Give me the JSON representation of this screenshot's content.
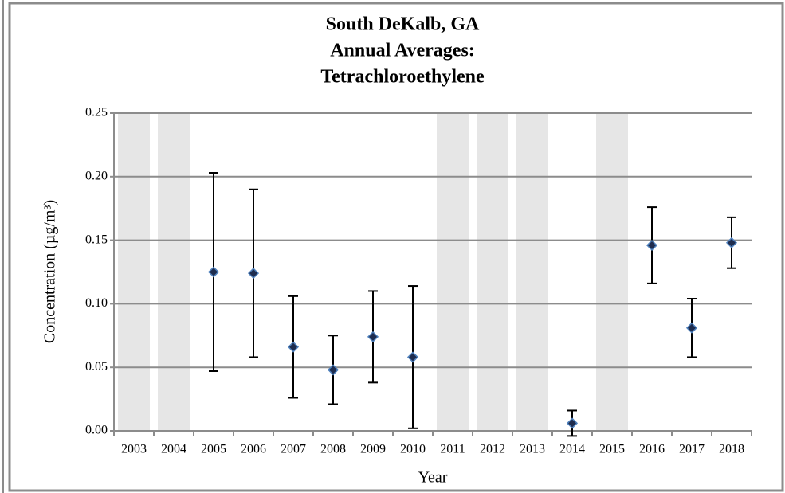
{
  "chart_data": {
    "type": "scatter",
    "title": [
      "South DeKalb, GA",
      "Annual Averages:",
      "Tetrachloroethylene"
    ],
    "x_label": "Year",
    "y_label": "Concentration (µg/m³)",
    "categories": [
      "2003",
      "2004",
      "2005",
      "2006",
      "2007",
      "2008",
      "2009",
      "2010",
      "2011",
      "2012",
      "2013",
      "2014",
      "2015",
      "2016",
      "2017",
      "2018"
    ],
    "series": [
      {
        "type": "bar",
        "color": "#e6e6e6",
        "values": [
          0.25,
          0.25,
          null,
          null,
          null,
          null,
          null,
          null,
          0.25,
          0.25,
          0.25,
          null,
          0.25,
          null,
          null,
          null
        ]
      },
      {
        "type": "scatter",
        "color": "#1f2d4f",
        "edge_color": "#4f81bd",
        "values": [
          null,
          null,
          0.125,
          0.124,
          0.066,
          0.048,
          0.074,
          0.058,
          null,
          null,
          null,
          0.006,
          null,
          0.146,
          0.081,
          0.148
        ],
        "errors": [
          null,
          null,
          0.078,
          0.066,
          0.04,
          0.027,
          0.036,
          0.056,
          null,
          null,
          null,
          0.01,
          null,
          0.03,
          0.023,
          0.02
        ]
      }
    ],
    "ylim": [
      0,
      0.25
    ],
    "yticks": [
      {
        "value": 0,
        "label": "0.00"
      },
      {
        "value": 0.05,
        "label": "0.05"
      },
      {
        "value": 0.1,
        "label": "0.10"
      },
      {
        "value": 0.15,
        "label": "0.15"
      },
      {
        "value": 0.2,
        "label": "0.20"
      },
      {
        "value": 0.25,
        "label": "0.25"
      }
    ],
    "grid": true
  }
}
